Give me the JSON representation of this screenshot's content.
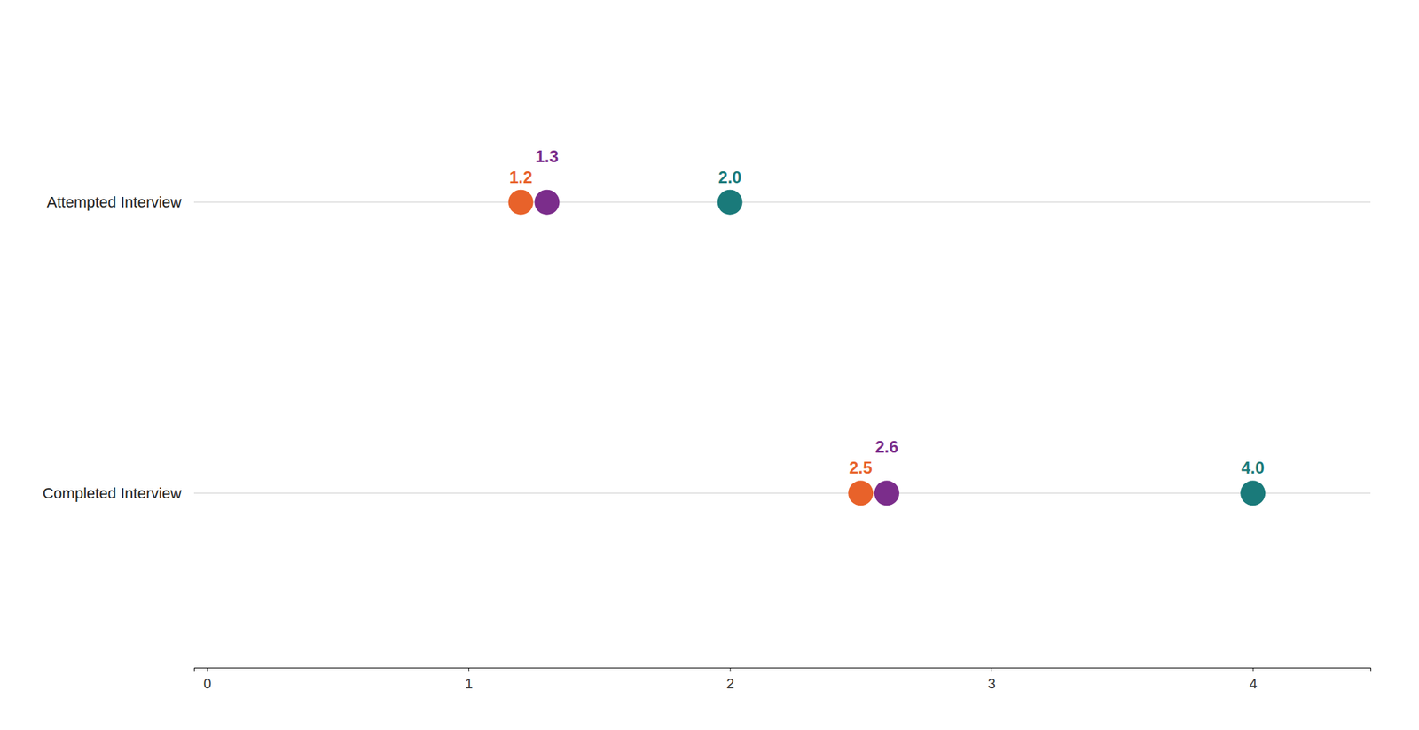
{
  "chart_data": {
    "type": "dot",
    "orientation": "horizontal",
    "categories": [
      "Attempted Interview",
      "Completed Interview"
    ],
    "series": [
      {
        "color": "#E8622A",
        "values": [
          1.2,
          2.5
        ]
      },
      {
        "color": "#7B2D8B",
        "values": [
          1.3,
          2.6
        ]
      },
      {
        "color": "#1A7A7A",
        "values": [
          2.0,
          4.0
        ],
        "value_labels": [
          "2.0",
          "4.0"
        ]
      }
    ],
    "xlim": [
      -0.05,
      4.45
    ],
    "xticks": [
      0,
      1,
      2,
      3,
      4
    ],
    "data_labels": true,
    "grid": false
  }
}
